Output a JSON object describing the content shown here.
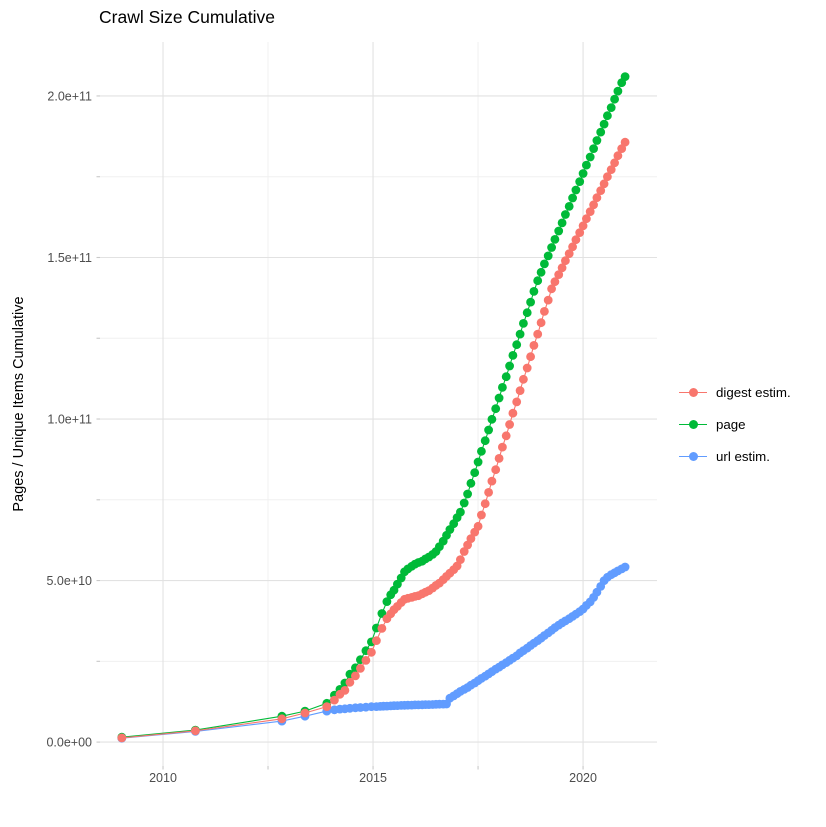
{
  "title": "Crawl Size Cumulative",
  "chart_data": {
    "type": "line",
    "title": "Crawl Size Cumulative",
    "xlabel": "",
    "ylabel": "Pages / Unique Items Cumulative",
    "values_unit": "1e9 (billions); y tick labels shown in scientific notation",
    "xlim": [
      2008.5,
      2021.76
    ],
    "ylim": [
      -7.4,
      216.7
    ],
    "grid": true,
    "legend_position": "right",
    "x_ticks": [
      {
        "label": "2010",
        "value": 2010
      },
      {
        "label": "2015",
        "value": 2015
      },
      {
        "label": "2020",
        "value": 2020
      }
    ],
    "x_minor_ticks": [
      2012.5,
      2017.5
    ],
    "y_ticks": [
      {
        "label": "0.0e+00",
        "value": 0
      },
      {
        "label": "5.0e+10",
        "value": 50
      },
      {
        "label": "1.0e+11",
        "value": 100
      },
      {
        "label": "1.5e+11",
        "value": 150
      },
      {
        "label": "2.0e+11",
        "value": 200
      }
    ],
    "y_minor_ticks": [
      25,
      75,
      125,
      175
    ],
    "series": [
      {
        "name": "digest estim.",
        "color": "#F8766D",
        "points": [
          [
            2009.02,
            1.3
          ],
          [
            2010.77,
            3.5
          ],
          [
            2012.83,
            7.2
          ],
          [
            2013.38,
            9.0
          ],
          [
            2013.9,
            11.0
          ],
          [
            2014.08,
            13.0
          ],
          [
            2014.21,
            14.8
          ],
          [
            2014.33,
            16.0
          ],
          [
            2014.45,
            18.5
          ],
          [
            2014.58,
            20.5
          ],
          [
            2014.7,
            22.8
          ],
          [
            2014.83,
            25.3
          ],
          [
            2014.96,
            27.8
          ],
          [
            2015.08,
            31.4
          ],
          [
            2015.21,
            35.2
          ],
          [
            2015.33,
            38.2
          ],
          [
            2015.42,
            39.7
          ],
          [
            2015.5,
            41.0
          ],
          [
            2015.58,
            42.0
          ],
          [
            2015.67,
            43.2
          ],
          [
            2015.75,
            44.2
          ],
          [
            2015.83,
            44.5
          ],
          [
            2015.92,
            44.8
          ],
          [
            2016.0,
            45.1
          ],
          [
            2016.08,
            45.3
          ],
          [
            2016.17,
            45.9
          ],
          [
            2016.25,
            46.4
          ],
          [
            2016.33,
            46.9
          ],
          [
            2016.42,
            47.7
          ],
          [
            2016.5,
            48.5
          ],
          [
            2016.58,
            49.2
          ],
          [
            2016.67,
            50.3
          ],
          [
            2016.75,
            51.3
          ],
          [
            2016.83,
            52.3
          ],
          [
            2016.92,
            53.4
          ],
          [
            2017.0,
            54.5
          ],
          [
            2017.08,
            56.5
          ],
          [
            2017.17,
            59.0
          ],
          [
            2017.25,
            61.0
          ],
          [
            2017.33,
            63.0
          ],
          [
            2017.42,
            65.0
          ],
          [
            2017.5,
            66.8
          ],
          [
            2017.58,
            70.3
          ],
          [
            2017.67,
            73.8
          ],
          [
            2017.75,
            77.3
          ],
          [
            2017.83,
            80.8
          ],
          [
            2017.92,
            84.3
          ],
          [
            2018.0,
            87.8
          ],
          [
            2018.08,
            91.3
          ],
          [
            2018.17,
            94.8
          ],
          [
            2018.25,
            98.3
          ],
          [
            2018.33,
            101.8
          ],
          [
            2018.42,
            105.3
          ],
          [
            2018.5,
            108.8
          ],
          [
            2018.58,
            112.3
          ],
          [
            2018.67,
            115.8
          ],
          [
            2018.75,
            119.3
          ],
          [
            2018.83,
            122.8
          ],
          [
            2018.92,
            126.3
          ],
          [
            2019.0,
            129.8
          ],
          [
            2019.08,
            133.3
          ],
          [
            2019.17,
            136.8
          ],
          [
            2019.25,
            140.3
          ],
          [
            2019.33,
            142.5
          ],
          [
            2019.42,
            144.7
          ],
          [
            2019.5,
            146.8
          ],
          [
            2019.58,
            149.0
          ],
          [
            2019.67,
            151.2
          ],
          [
            2019.75,
            153.3
          ],
          [
            2019.83,
            155.5
          ],
          [
            2019.92,
            157.7
          ],
          [
            2020.0,
            159.8
          ],
          [
            2020.08,
            162.0
          ],
          [
            2020.17,
            164.2
          ],
          [
            2020.25,
            166.3
          ],
          [
            2020.33,
            168.5
          ],
          [
            2020.42,
            170.7
          ],
          [
            2020.5,
            172.8
          ],
          [
            2020.58,
            175.0
          ],
          [
            2020.67,
            177.2
          ],
          [
            2020.75,
            179.3
          ],
          [
            2020.83,
            181.5
          ],
          [
            2020.92,
            183.7
          ],
          [
            2021.0,
            185.7
          ]
        ]
      },
      {
        "name": "page",
        "color": "#00BA38",
        "points": [
          [
            2009.02,
            1.5
          ],
          [
            2010.77,
            3.7
          ],
          [
            2012.83,
            8.0
          ],
          [
            2013.38,
            9.6
          ],
          [
            2013.9,
            12.0
          ],
          [
            2014.08,
            14.5
          ],
          [
            2014.21,
            16.3
          ],
          [
            2014.33,
            18.3
          ],
          [
            2014.45,
            21.0
          ],
          [
            2014.58,
            23.0
          ],
          [
            2014.7,
            25.5
          ],
          [
            2014.83,
            28.3
          ],
          [
            2014.96,
            31.0
          ],
          [
            2015.08,
            35.3
          ],
          [
            2015.21,
            39.8
          ],
          [
            2015.33,
            43.5
          ],
          [
            2015.42,
            45.6
          ],
          [
            2015.5,
            47.0
          ],
          [
            2015.58,
            48.9
          ],
          [
            2015.67,
            50.8
          ],
          [
            2015.75,
            52.7
          ],
          [
            2015.83,
            53.6
          ],
          [
            2015.92,
            54.4
          ],
          [
            2016.0,
            55.1
          ],
          [
            2016.08,
            55.6
          ],
          [
            2016.17,
            56.0
          ],
          [
            2016.25,
            56.7
          ],
          [
            2016.33,
            57.3
          ],
          [
            2016.42,
            58.1
          ],
          [
            2016.5,
            59.0
          ],
          [
            2016.58,
            60.5
          ],
          [
            2016.67,
            62.2
          ],
          [
            2016.75,
            64.0
          ],
          [
            2016.83,
            65.8
          ],
          [
            2016.92,
            67.6
          ],
          [
            2017.0,
            69.5
          ],
          [
            2017.08,
            71.2
          ],
          [
            2017.17,
            74.0
          ],
          [
            2017.25,
            76.8
          ],
          [
            2017.33,
            80.1
          ],
          [
            2017.42,
            83.4
          ],
          [
            2017.5,
            86.7
          ],
          [
            2017.58,
            90.0
          ],
          [
            2017.67,
            93.3
          ],
          [
            2017.75,
            96.6
          ],
          [
            2017.83,
            99.9
          ],
          [
            2017.92,
            103.2
          ],
          [
            2018.0,
            106.5
          ],
          [
            2018.08,
            109.8
          ],
          [
            2018.17,
            113.1
          ],
          [
            2018.25,
            116.4
          ],
          [
            2018.33,
            119.7
          ],
          [
            2018.42,
            123.0
          ],
          [
            2018.5,
            126.3
          ],
          [
            2018.58,
            129.6
          ],
          [
            2018.67,
            132.9
          ],
          [
            2018.75,
            136.2
          ],
          [
            2018.83,
            139.5
          ],
          [
            2018.92,
            142.8
          ],
          [
            2019.0,
            145.4
          ],
          [
            2019.08,
            148.0
          ],
          [
            2019.17,
            150.5
          ],
          [
            2019.25,
            153.1
          ],
          [
            2019.33,
            155.6
          ],
          [
            2019.42,
            158.2
          ],
          [
            2019.5,
            160.7
          ],
          [
            2019.58,
            163.3
          ],
          [
            2019.67,
            165.8
          ],
          [
            2019.75,
            168.4
          ],
          [
            2019.83,
            170.9
          ],
          [
            2019.92,
            173.5
          ],
          [
            2020.0,
            176.0
          ],
          [
            2020.08,
            178.6
          ],
          [
            2020.17,
            181.1
          ],
          [
            2020.25,
            183.7
          ],
          [
            2020.33,
            186.2
          ],
          [
            2020.42,
            188.8
          ],
          [
            2020.5,
            191.3
          ],
          [
            2020.58,
            193.9
          ],
          [
            2020.67,
            196.4
          ],
          [
            2020.75,
            199.0
          ],
          [
            2020.83,
            201.5
          ],
          [
            2020.92,
            204.1
          ],
          [
            2021.0,
            206.0
          ]
        ]
      },
      {
        "name": "url estim.",
        "color": "#619CFF",
        "points": [
          [
            2009.02,
            1.2
          ],
          [
            2010.77,
            3.3
          ],
          [
            2012.83,
            6.5
          ],
          [
            2013.38,
            8.0
          ],
          [
            2013.9,
            9.6
          ],
          [
            2014.08,
            10.0
          ],
          [
            2014.21,
            10.2
          ],
          [
            2014.33,
            10.3
          ],
          [
            2014.45,
            10.45
          ],
          [
            2014.58,
            10.6
          ],
          [
            2014.7,
            10.7
          ],
          [
            2014.83,
            10.8
          ],
          [
            2014.96,
            10.95
          ],
          [
            2015.08,
            11.0
          ],
          [
            2015.17,
            11.05
          ],
          [
            2015.25,
            11.1
          ],
          [
            2015.33,
            11.15
          ],
          [
            2015.42,
            11.2
          ],
          [
            2015.5,
            11.25
          ],
          [
            2015.58,
            11.3
          ],
          [
            2015.67,
            11.35
          ],
          [
            2015.75,
            11.4
          ],
          [
            2015.83,
            11.42
          ],
          [
            2015.92,
            11.45
          ],
          [
            2016.0,
            11.5
          ],
          [
            2016.08,
            11.52
          ],
          [
            2016.17,
            11.55
          ],
          [
            2016.25,
            11.6
          ],
          [
            2016.33,
            11.62
          ],
          [
            2016.42,
            11.65
          ],
          [
            2016.5,
            11.7
          ],
          [
            2016.58,
            11.72
          ],
          [
            2016.67,
            11.75
          ],
          [
            2016.75,
            11.8
          ],
          [
            2016.83,
            13.6
          ],
          [
            2016.92,
            14.3
          ],
          [
            2017.0,
            15.0
          ],
          [
            2017.08,
            15.7
          ],
          [
            2017.17,
            16.3
          ],
          [
            2017.25,
            16.9
          ],
          [
            2017.33,
            17.6
          ],
          [
            2017.42,
            18.3
          ],
          [
            2017.5,
            19.0
          ],
          [
            2017.58,
            19.7
          ],
          [
            2017.67,
            20.4
          ],
          [
            2017.75,
            21.1
          ],
          [
            2017.83,
            21.8
          ],
          [
            2017.92,
            22.6
          ],
          [
            2018.0,
            23.2
          ],
          [
            2018.08,
            23.9
          ],
          [
            2018.17,
            24.6
          ],
          [
            2018.25,
            25.3
          ],
          [
            2018.33,
            26.0
          ],
          [
            2018.42,
            26.7
          ],
          [
            2018.5,
            27.6
          ],
          [
            2018.58,
            28.3
          ],
          [
            2018.67,
            29.1
          ],
          [
            2018.75,
            29.9
          ],
          [
            2018.83,
            30.6
          ],
          [
            2018.92,
            31.4
          ],
          [
            2019.0,
            32.2
          ],
          [
            2019.08,
            33.0
          ],
          [
            2019.17,
            33.8
          ],
          [
            2019.25,
            34.6
          ],
          [
            2019.33,
            35.4
          ],
          [
            2019.42,
            36.2
          ],
          [
            2019.5,
            36.9
          ],
          [
            2019.58,
            37.5
          ],
          [
            2019.67,
            38.2
          ],
          [
            2019.75,
            38.9
          ],
          [
            2019.83,
            39.6
          ],
          [
            2019.92,
            40.4
          ],
          [
            2020.0,
            41.2
          ],
          [
            2020.08,
            42.3
          ],
          [
            2020.17,
            43.4
          ],
          [
            2020.25,
            44.8
          ],
          [
            2020.33,
            46.4
          ],
          [
            2020.42,
            48.2
          ],
          [
            2020.5,
            50.0
          ],
          [
            2020.58,
            51.0
          ],
          [
            2020.67,
            51.8
          ],
          [
            2020.75,
            52.4
          ],
          [
            2020.83,
            53.0
          ],
          [
            2020.92,
            53.6
          ],
          [
            2021.0,
            54.2
          ]
        ]
      }
    ],
    "draw_order": [
      1,
      2,
      0
    ],
    "style": {
      "major_grid_color": "#E2E2E2",
      "minor_grid_color": "#F0F0F0",
      "tick_color": "#C8C8C8",
      "axis_text_color": "#4D4D4D",
      "point_radius": 4.4,
      "line_width": 1.1
    }
  }
}
